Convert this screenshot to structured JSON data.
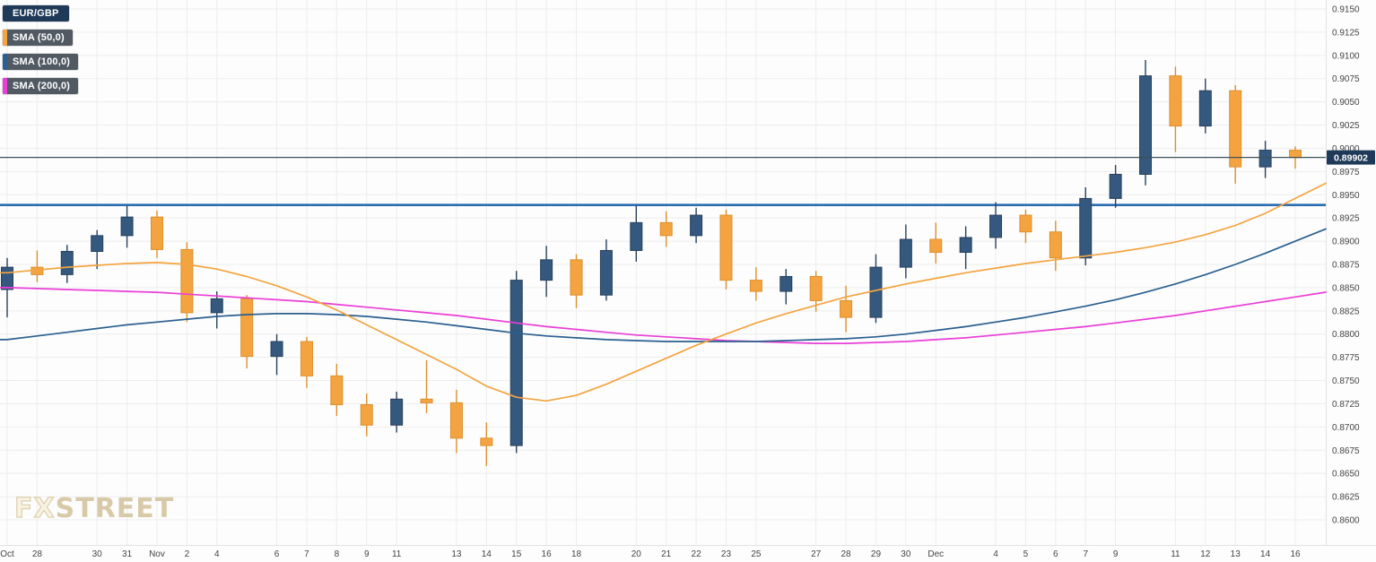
{
  "legend": {
    "symbol_label": "EUR/GBP",
    "sma50_label": "SMA (50,0)",
    "sma100_label": "SMA (100,0)",
    "sma200_label": "SMA (200,0)"
  },
  "watermark": {
    "fx": "FX",
    "street": "STREET"
  },
  "colors": {
    "background": "#fdfdfd",
    "grid": "#ededed",
    "axis_text": "#444444",
    "up_candle": "#35587e",
    "up_wick": "#27415d",
    "down_candle": "#f3a440",
    "down_wick": "#dd8f2c",
    "support_line": "#2a6cb0",
    "price_line": "#3e5059",
    "price_badge_bg": "#1f3a58",
    "price_badge_text": "#ffffff",
    "symbol_badge_bg": "#1f3a58",
    "sma_badge_bg": "#515a63"
  },
  "chart_data": {
    "type": "candlestick",
    "pair": "EUR/GBP",
    "current_price": 0.89902,
    "current_price_label": "0.89902",
    "support_line": 0.8939,
    "y_axis": {
      "min": 0.86,
      "max": 0.915,
      "step": 0.0025
    },
    "y_ticks": [
      "0.9150",
      "0.9125",
      "0.9100",
      "0.9075",
      "0.9050",
      "0.9025",
      "0.9000",
      "0.8975",
      "0.8950",
      "0.8925",
      "0.8900",
      "0.8875",
      "0.8850",
      "0.8825",
      "0.8800",
      "0.8775",
      "0.8750",
      "0.8725",
      "0.8700",
      "0.8675",
      "0.8650",
      "0.8625",
      "0.8600"
    ],
    "x_ticks": [
      {
        "slot": 0,
        "label": "Oct"
      },
      {
        "slot": 1,
        "label": "28"
      },
      {
        "slot": 3,
        "label": "30"
      },
      {
        "slot": 4,
        "label": "31"
      },
      {
        "slot": 5,
        "label": "Nov"
      },
      {
        "slot": 6,
        "label": "2"
      },
      {
        "slot": 7,
        "label": "4"
      },
      {
        "slot": 9,
        "label": "6"
      },
      {
        "slot": 10,
        "label": "7"
      },
      {
        "slot": 11,
        "label": "8"
      },
      {
        "slot": 12,
        "label": "9"
      },
      {
        "slot": 13,
        "label": "11"
      },
      {
        "slot": 15,
        "label": "13"
      },
      {
        "slot": 16,
        "label": "14"
      },
      {
        "slot": 17,
        "label": "15"
      },
      {
        "slot": 18,
        "label": "16"
      },
      {
        "slot": 19,
        "label": "18"
      },
      {
        "slot": 21,
        "label": "20"
      },
      {
        "slot": 22,
        "label": "21"
      },
      {
        "slot": 23,
        "label": "22"
      },
      {
        "slot": 24,
        "label": "23"
      },
      {
        "slot": 25,
        "label": "25"
      },
      {
        "slot": 27,
        "label": "27"
      },
      {
        "slot": 28,
        "label": "28"
      },
      {
        "slot": 29,
        "label": "29"
      },
      {
        "slot": 30,
        "label": "30"
      },
      {
        "slot": 31,
        "label": "Dec"
      },
      {
        "slot": 33,
        "label": "4"
      },
      {
        "slot": 34,
        "label": "5"
      },
      {
        "slot": 35,
        "label": "6"
      },
      {
        "slot": 36,
        "label": "7"
      },
      {
        "slot": 37,
        "label": "9"
      },
      {
        "slot": 39,
        "label": "11"
      },
      {
        "slot": 40,
        "label": "12"
      },
      {
        "slot": 41,
        "label": "13"
      },
      {
        "slot": 42,
        "label": "14"
      },
      {
        "slot": 43,
        "label": "16"
      }
    ],
    "categories": [
      "Oct 26",
      "Oct 28",
      "Oct 29",
      "Oct 30",
      "Oct 31",
      "Nov 1",
      "Nov 2",
      "Nov 4",
      "Nov 5",
      "Nov 6",
      "Nov 7",
      "Nov 8",
      "Nov 9",
      "Nov 11",
      "Nov 12",
      "Nov 13",
      "Nov 14",
      "Nov 15",
      "Nov 16",
      "Nov 18",
      "Nov 19",
      "Nov 20",
      "Nov 21",
      "Nov 22",
      "Nov 23",
      "Nov 25",
      "Nov 26",
      "Nov 27",
      "Nov 28",
      "Nov 29",
      "Nov 30",
      "Dec 2",
      "Dec 3",
      "Dec 4",
      "Dec 5",
      "Dec 6",
      "Dec 7",
      "Dec 9",
      "Dec 10",
      "Dec 11",
      "Dec 12",
      "Dec 13",
      "Dec 14",
      "Dec 16"
    ],
    "candles": [
      [
        0.8848,
        0.8882,
        0.8818,
        0.8872
      ],
      [
        0.8872,
        0.889,
        0.8856,
        0.8864
      ],
      [
        0.8864,
        0.8896,
        0.8855,
        0.8889
      ],
      [
        0.8889,
        0.8912,
        0.887,
        0.8906
      ],
      [
        0.8906,
        0.8938,
        0.8893,
        0.8926
      ],
      [
        0.8926,
        0.8933,
        0.8882,
        0.8891
      ],
      [
        0.8891,
        0.8899,
        0.8813,
        0.8823
      ],
      [
        0.8823,
        0.8846,
        0.8806,
        0.8838
      ],
      [
        0.8838,
        0.8842,
        0.8763,
        0.8776
      ],
      [
        0.8776,
        0.88,
        0.8756,
        0.8792
      ],
      [
        0.8792,
        0.8797,
        0.8742,
        0.8755
      ],
      [
        0.8755,
        0.8768,
        0.8712,
        0.8724
      ],
      [
        0.8724,
        0.8736,
        0.869,
        0.8702
      ],
      [
        0.8702,
        0.8738,
        0.8694,
        0.873
      ],
      [
        0.873,
        0.8772,
        0.8715,
        0.8726
      ],
      [
        0.8726,
        0.874,
        0.8672,
        0.8688
      ],
      [
        0.8688,
        0.8705,
        0.8658,
        0.868
      ],
      [
        0.868,
        0.8868,
        0.8672,
        0.8858
      ],
      [
        0.8858,
        0.8895,
        0.884,
        0.888
      ],
      [
        0.888,
        0.8886,
        0.8828,
        0.8842
      ],
      [
        0.8842,
        0.8902,
        0.8836,
        0.889
      ],
      [
        0.889,
        0.8938,
        0.8878,
        0.892
      ],
      [
        0.892,
        0.8932,
        0.8894,
        0.8906
      ],
      [
        0.8906,
        0.8936,
        0.8898,
        0.8928
      ],
      [
        0.8928,
        0.8934,
        0.8848,
        0.8858
      ],
      [
        0.8858,
        0.8872,
        0.8836,
        0.8846
      ],
      [
        0.8846,
        0.887,
        0.8832,
        0.8862
      ],
      [
        0.8862,
        0.8868,
        0.8824,
        0.8836
      ],
      [
        0.8836,
        0.8852,
        0.8802,
        0.8818
      ],
      [
        0.8818,
        0.8886,
        0.8812,
        0.8872
      ],
      [
        0.8872,
        0.8918,
        0.886,
        0.8902
      ],
      [
        0.8902,
        0.892,
        0.8876,
        0.8888
      ],
      [
        0.8888,
        0.8916,
        0.887,
        0.8904
      ],
      [
        0.8904,
        0.8942,
        0.8892,
        0.8928
      ],
      [
        0.8928,
        0.8934,
        0.8898,
        0.891
      ],
      [
        0.891,
        0.8922,
        0.8868,
        0.8882
      ],
      [
        0.8882,
        0.8958,
        0.8874,
        0.8946
      ],
      [
        0.8946,
        0.8982,
        0.8936,
        0.8972
      ],
      [
        0.8972,
        0.9095,
        0.896,
        0.9078
      ],
      [
        0.9078,
        0.9088,
        0.8996,
        0.9024
      ],
      [
        0.9024,
        0.9075,
        0.9016,
        0.9062
      ],
      [
        0.9062,
        0.9068,
        0.8962,
        0.898
      ],
      [
        0.898,
        0.9008,
        0.8968,
        0.8998
      ],
      [
        0.8998,
        0.9002,
        0.8978,
        0.899
      ]
    ],
    "series": [
      {
        "name": "SMA (50,0)",
        "color": "#f3a440",
        "values": [
          0.8866,
          0.8869,
          0.8872,
          0.8874,
          0.8876,
          0.8877,
          0.8875,
          0.887,
          0.8862,
          0.8852,
          0.884,
          0.8826,
          0.881,
          0.8794,
          0.8778,
          0.8762,
          0.8744,
          0.8732,
          0.8728,
          0.8734,
          0.8746,
          0.876,
          0.8774,
          0.8788,
          0.88,
          0.8812,
          0.8822,
          0.8831,
          0.884,
          0.8847,
          0.8854,
          0.886,
          0.8866,
          0.8871,
          0.8876,
          0.888,
          0.8884,
          0.8888,
          0.8893,
          0.8899,
          0.8907,
          0.8917,
          0.893,
          0.8946
        ]
      },
      {
        "name": "SMA (100,0)",
        "color": "#2a5f8f",
        "values": [
          0.8794,
          0.8798,
          0.8802,
          0.8806,
          0.881,
          0.8813,
          0.8816,
          0.8819,
          0.8821,
          0.8822,
          0.8822,
          0.8821,
          0.8819,
          0.8816,
          0.8813,
          0.8809,
          0.8805,
          0.8801,
          0.8798,
          0.8796,
          0.8794,
          0.8793,
          0.8792,
          0.8792,
          0.8792,
          0.8792,
          0.8793,
          0.8794,
          0.8795,
          0.8797,
          0.88,
          0.8804,
          0.8808,
          0.8813,
          0.8818,
          0.8824,
          0.883,
          0.8837,
          0.8845,
          0.8854,
          0.8864,
          0.8875,
          0.8887,
          0.89
        ]
      },
      {
        "name": "SMA (200,0)",
        "color": "#e93fd6",
        "values": [
          0.885,
          0.8849,
          0.8848,
          0.8847,
          0.8846,
          0.8845,
          0.8843,
          0.8841,
          0.8839,
          0.8837,
          0.8835,
          0.8832,
          0.8829,
          0.8826,
          0.8823,
          0.882,
          0.8816,
          0.8812,
          0.8808,
          0.8805,
          0.8802,
          0.8799,
          0.8797,
          0.8795,
          0.8793,
          0.8792,
          0.8791,
          0.879,
          0.879,
          0.8791,
          0.8792,
          0.8794,
          0.8796,
          0.8799,
          0.8802,
          0.8805,
          0.8808,
          0.8812,
          0.8816,
          0.882,
          0.8825,
          0.883,
          0.8835,
          0.884
        ]
      }
    ]
  }
}
